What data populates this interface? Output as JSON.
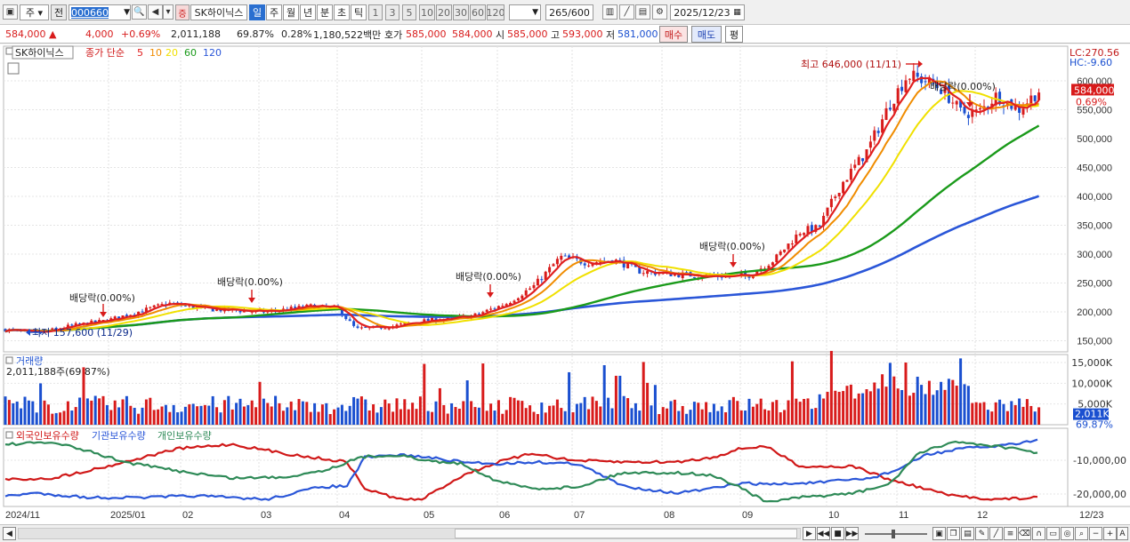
{
  "toolbar": {
    "period_label": "주",
    "prev_label": "전",
    "stock_code": "000660",
    "stock_name": "SK하이닉스",
    "caution_label": "증",
    "periods": [
      "일",
      "주",
      "월",
      "년",
      "분",
      "초",
      "틱"
    ],
    "minute_options": [
      "1",
      "3",
      "5",
      "10",
      "20",
      "30",
      "60",
      "120"
    ],
    "count": "265",
    "count_max": "/600",
    "date": "2025/12/23",
    "selected_period": "일"
  },
  "quote": {
    "price": "584,000",
    "change_arrow": "▲",
    "change": "4,000",
    "change_pct": "+0.69%",
    "volume": "2,011,188",
    "volume_ratio": "69.87%",
    "turnover": "0.28%",
    "amount": "1,180,522백만",
    "bid_label": "호가",
    "ask_price": "585,000",
    "bid_price": "584,000",
    "open_label": "시",
    "open": "585,000",
    "high_label": "고",
    "high": "593,000",
    "low_label": "저",
    "low": "581,000",
    "buy_label": "매수",
    "sell_label": "매도",
    "avg_label": "평"
  },
  "legend": {
    "name": "SK하이닉스",
    "title": "종가 단순",
    "ma": [
      {
        "label": "5",
        "color": "#e02020"
      },
      {
        "label": "10",
        "color": "#f08c00"
      },
      {
        "label": "20",
        "color": "#f0e000"
      },
      {
        "label": "60",
        "color": "#1a9a1a"
      },
      {
        "label": "120",
        "color": "#2a56d8"
      }
    ]
  },
  "price_axis": {
    "labels": [
      "600,000",
      "550,000",
      "500,000",
      "450,000",
      "400,000",
      "350,000",
      "300,000",
      "250,000",
      "200,000",
      "150,000"
    ],
    "current": "584,000",
    "current_pct": "0.69%",
    "lc": "LC:270.56",
    "hc": "HC:-9.60"
  },
  "annotations": {
    "high": "최고 646,000 (11/11)",
    "low": "최저 157,600 (11/29)",
    "dividends": [
      "배당락(0.00%)",
      "배당락(0.00%)",
      "배당락(0.00%)",
      "배당락(0.00%)",
      "배당락(0.00%)"
    ]
  },
  "volume_panel": {
    "title": "거래량",
    "value": "2,011,188주(69.87%)",
    "axis": [
      "15,000K",
      "10,000K",
      "5,000K"
    ],
    "current": "2,011K",
    "current_pct": "69.87%"
  },
  "holdings_panel": {
    "series": [
      {
        "label": "외국인보유수량",
        "color": "#d01818"
      },
      {
        "label": "기관보유수량",
        "color": "#2a56d8"
      },
      {
        "label": "개인보유수량",
        "color": "#2e8a57"
      }
    ],
    "axis": [
      "-10,000,00",
      "-20,000,00"
    ]
  },
  "x_axis": [
    "2024/11",
    "2025/01",
    "02",
    "03",
    "04",
    "05",
    "06",
    "07",
    "08",
    "09",
    "10",
    "11",
    "12",
    "12/23"
  ],
  "colors": {
    "up": "#d81b1b",
    "down": "#1a4fd0",
    "grid": "#d8d8d8"
  },
  "chart_data": {
    "type": "candlestick",
    "ylim": [
      140000,
      660000
    ],
    "x": [
      "2024/11",
      "2025/01",
      "02",
      "03",
      "04",
      "05",
      "06",
      "07",
      "08",
      "09",
      "10",
      "11",
      "12"
    ],
    "close_trend": [
      168000,
      178000,
      200000,
      205000,
      175000,
      180000,
      205000,
      285000,
      265000,
      260000,
      400000,
      605000,
      584000
    ],
    "high_point": {
      "date": "11/11",
      "value": 646000
    },
    "low_point": {
      "date": "11/29",
      "value": 157600
    }
  }
}
